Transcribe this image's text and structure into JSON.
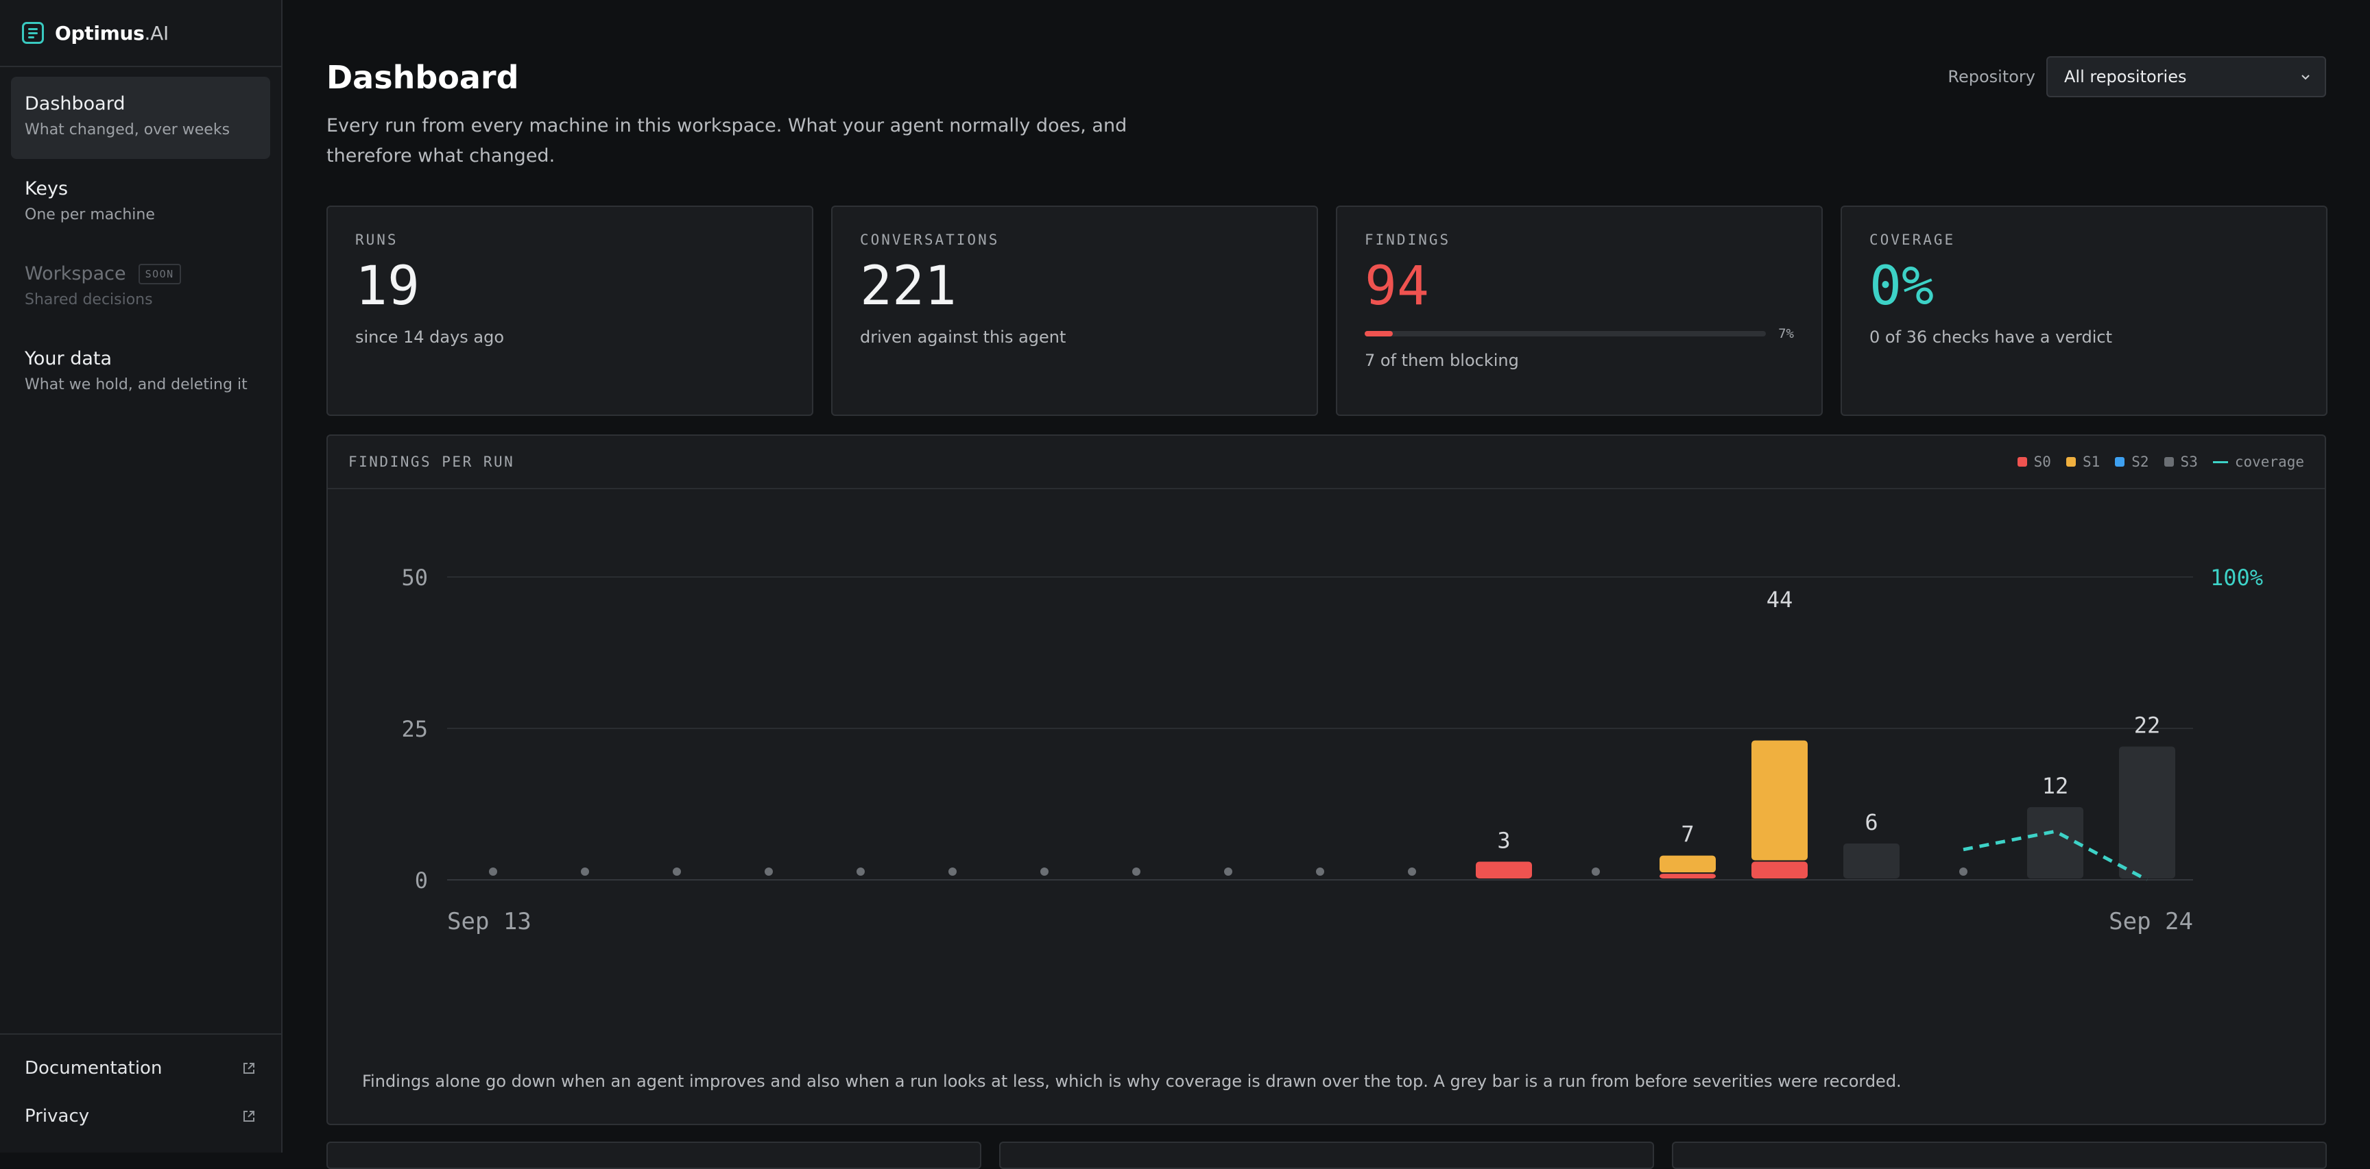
{
  "brand": {
    "name": "Optimus",
    "suffix": ".AI"
  },
  "sidebar": {
    "items": [
      {
        "title": "Dashboard",
        "subtitle": "What changed, over weeks"
      },
      {
        "title": "Keys",
        "subtitle": "One per machine"
      },
      {
        "title": "Workspace",
        "subtitle": "Shared decisions",
        "badge": "SOON"
      },
      {
        "title": "Your data",
        "subtitle": "What we hold, and deleting it"
      }
    ],
    "footer": [
      {
        "label": "Documentation"
      },
      {
        "label": "Privacy"
      }
    ]
  },
  "header": {
    "title": "Dashboard",
    "description": "Every run from every machine in this workspace. What your agent normally does, and therefore what changed.",
    "repo_label": "Repository",
    "repo_value": "All repositories"
  },
  "stats": [
    {
      "label": "RUNS",
      "value": "19",
      "sub": "since 14 days ago"
    },
    {
      "label": "CONVERSATIONS",
      "value": "221",
      "sub": "driven against this agent"
    },
    {
      "label": "FINDINGS",
      "value": "94",
      "sub": "7 of them blocking",
      "progress_pct": "7%",
      "progress": 0.07
    },
    {
      "label": "COVERAGE",
      "value": "0%",
      "sub": "0 of 36 checks have a verdict"
    }
  ],
  "chart": {
    "title": "FINDINGS PER RUN",
    "legend": [
      {
        "label": "S0",
        "color": "#ef5350"
      },
      {
        "label": "S1",
        "color": "#f0b03f"
      },
      {
        "label": "S2",
        "color": "#3ea0f0"
      },
      {
        "label": "S3",
        "color": "#6b6f74"
      },
      {
        "label": "coverage",
        "color": "#3dd2c7"
      }
    ],
    "footnote": "Findings alone go down when an agent improves and also when a run looks at less, which is why coverage is drawn over the top. A grey bar is a run from before severities were recorded."
  },
  "chart_data": {
    "type": "bar",
    "stacked": true,
    "title": "FINDINGS PER RUN",
    "x_start_label": "Sep 13",
    "x_end_label": "Sep 24",
    "ylim": [
      0,
      50
    ],
    "yticks": [
      0,
      25,
      50
    ],
    "y2_label": "100%",
    "runs": [
      {
        "S0": 0,
        "S1": 0,
        "S3": 0
      },
      {
        "S0": 0,
        "S1": 0,
        "S3": 0
      },
      {
        "S0": 0,
        "S1": 0,
        "S3": 0
      },
      {
        "S0": 0,
        "S1": 0,
        "S3": 0
      },
      {
        "S0": 0,
        "S1": 0,
        "S3": 0
      },
      {
        "S0": 0,
        "S1": 0,
        "S3": 0
      },
      {
        "S0": 0,
        "S1": 0,
        "S3": 0
      },
      {
        "S0": 0,
        "S1": 0,
        "S3": 0
      },
      {
        "S0": 0,
        "S1": 0,
        "S3": 0
      },
      {
        "S0": 0,
        "S1": 0,
        "S3": 0
      },
      {
        "S0": 0,
        "S1": 0,
        "S3": 0
      },
      {
        "S0": 3,
        "S1": 0,
        "S3": 0,
        "label": "3"
      },
      {
        "S0": 0,
        "S1": 0,
        "S3": 0
      },
      {
        "S0": 1,
        "S1": 3,
        "S3": 0,
        "label": "7"
      },
      {
        "S0": 3,
        "S1": 20,
        "S3": 0,
        "label": "44"
      },
      {
        "S0": 0,
        "S1": 0,
        "S3": 6,
        "label": "6"
      },
      {
        "S0": 0,
        "S1": 0,
        "S3": 0
      },
      {
        "S0": 0,
        "S1": 0,
        "S3": 12,
        "label": "12"
      },
      {
        "S0": 0,
        "S1": 0,
        "S3": 22,
        "label": "22"
      }
    ],
    "coverage": [
      {
        "run": 16,
        "value": 0.05
      },
      {
        "run": 17,
        "value": 0.08
      },
      {
        "run": 18,
        "value": 0.0
      }
    ]
  }
}
